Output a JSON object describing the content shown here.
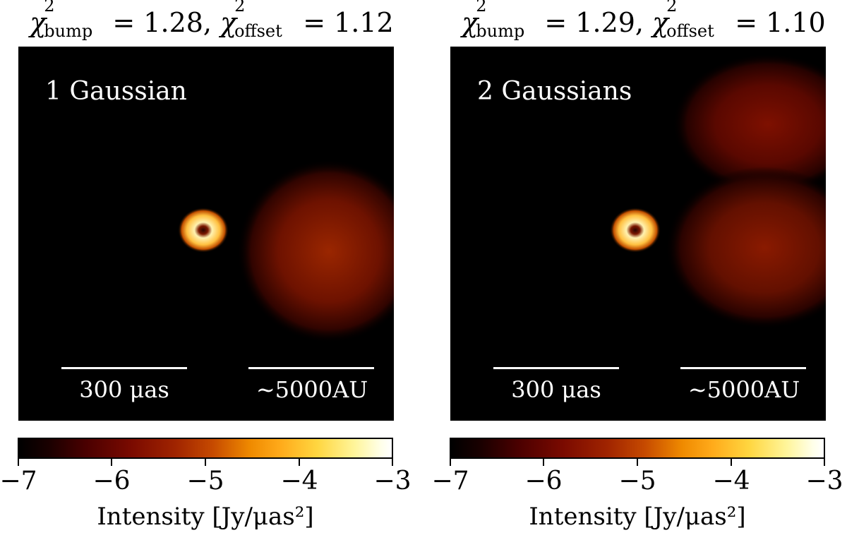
{
  "panels": [
    {
      "chi_symbol": "χ",
      "chi_sup": "2",
      "chi_bump_sub": "bump",
      "chi_offset_sub": "offset",
      "title_eq_bump": " = 1.28, ",
      "title_eq_offset": " = 1.12",
      "model_label": "1 Gaussian",
      "scalebar_angular": "300 μas",
      "scalebar_physical": "∼5000AU",
      "colorbar_ticks": [
        "−7",
        "−6",
        "−5",
        "−4",
        "−3"
      ],
      "colorbar_label": "Intensity [Jy/μas²]"
    },
    {
      "chi_symbol": "χ",
      "chi_sup": "2",
      "chi_bump_sub": "bump",
      "chi_offset_sub": "offset",
      "title_eq_bump": " = 1.29, ",
      "title_eq_offset": " = 1.10",
      "model_label": "2 Gaussians",
      "scalebar_angular": "300 μas",
      "scalebar_physical": "∼5000AU",
      "colorbar_ticks": [
        "−7",
        "−6",
        "−5",
        "−4",
        "−3"
      ],
      "colorbar_label": "Intensity [Jy/μas²]"
    }
  ],
  "colorbar": {
    "min": -7,
    "max": -3,
    "tick_values": [
      -7,
      -6,
      -5,
      -4,
      -3
    ],
    "colormap": "afmhot"
  },
  "colors": {
    "background": "#000000",
    "text_on_image": "#ffffff",
    "gaussian_core": "#9a2600",
    "ring_color": "#ffe27a"
  }
}
